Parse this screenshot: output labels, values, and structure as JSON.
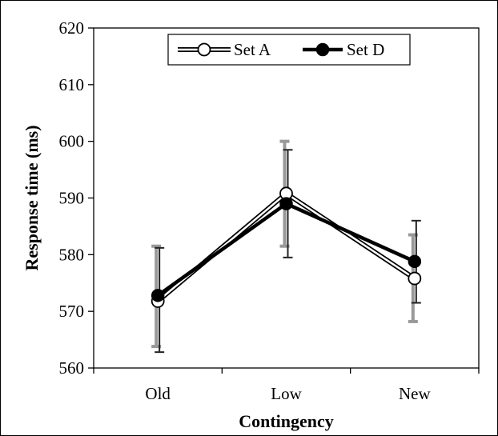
{
  "chart_data": {
    "type": "line",
    "xlabel": "Contingency",
    "ylabel": "Response time (ms)",
    "categories": [
      "Old",
      "Low",
      "New"
    ],
    "ylim": [
      560,
      620
    ],
    "yticks": [
      560,
      570,
      580,
      590,
      600,
      610,
      620
    ],
    "legend_position": "top-center",
    "grid": false,
    "series": [
      {
        "name": "Set A",
        "values": [
          571.8,
          590.8,
          575.8
        ],
        "error_low": [
          563.8,
          581.5,
          568.2
        ],
        "error_high": [
          581.5,
          600.0,
          583.5
        ],
        "marker": "open-circle",
        "color": "#000000",
        "error_color": "#999999"
      },
      {
        "name": "Set D",
        "values": [
          572.8,
          589.0,
          578.8
        ],
        "error_low": [
          562.8,
          579.5,
          571.5
        ],
        "error_high": [
          581.2,
          598.5,
          586.0
        ],
        "marker": "filled-circle",
        "color": "#000000",
        "error_color": "#222222"
      }
    ]
  }
}
